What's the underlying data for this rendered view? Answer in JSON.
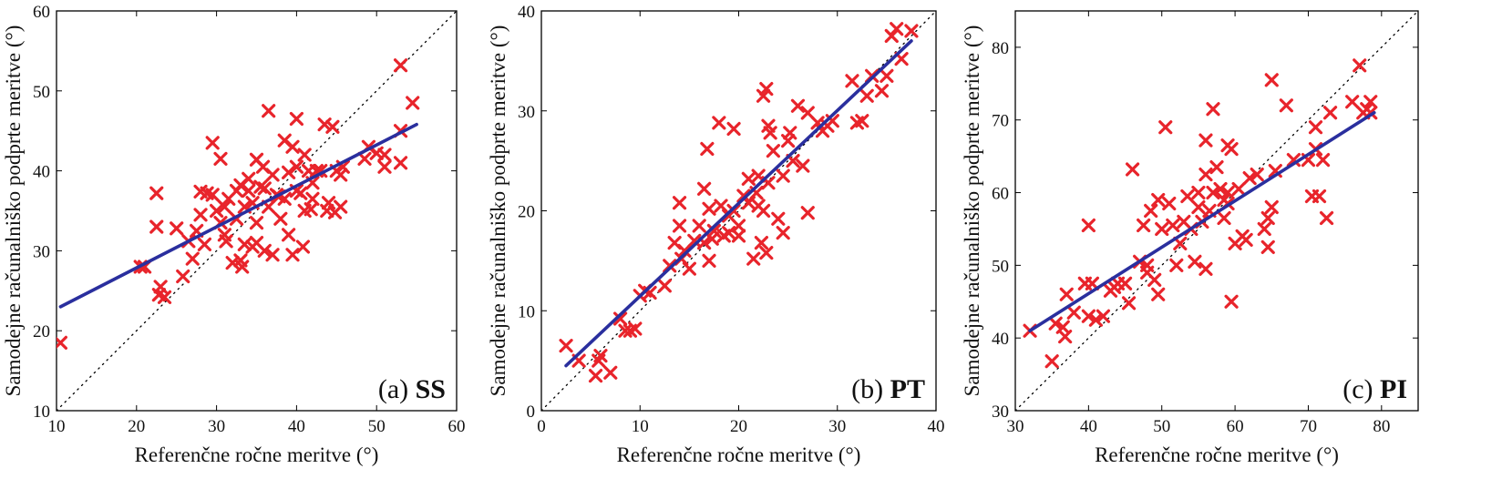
{
  "chart_data": [
    {
      "type": "scatter",
      "panel_letter": "(a)",
      "panel_code": "SS",
      "xlabel": "Referenčne ročne meritve (°)",
      "ylabel": "Samodejne računalniško podprte meritve (°)",
      "xlim": [
        10,
        60
      ],
      "ylim": [
        10,
        60
      ],
      "xticks": [
        10,
        20,
        30,
        40,
        50,
        60
      ],
      "yticks": [
        10,
        20,
        30,
        40,
        50,
        60
      ],
      "grid": false,
      "marker_color": "#e8242b",
      "fit_color": "#2a2f9e",
      "identity_line": [
        [
          10,
          10
        ],
        [
          60,
          60
        ]
      ],
      "fit_line": [
        [
          10.5,
          23
        ],
        [
          55,
          45.8
        ]
      ],
      "points": [
        [
          10.5,
          18.5
        ],
        [
          20.5,
          28
        ],
        [
          21,
          28
        ],
        [
          22.5,
          33
        ],
        [
          22.5,
          37.2
        ],
        [
          22.8,
          24.5
        ],
        [
          23,
          25.5
        ],
        [
          23.5,
          24.2
        ],
        [
          25,
          32.8
        ],
        [
          25.8,
          26.8
        ],
        [
          26.5,
          31.2
        ],
        [
          27,
          29
        ],
        [
          27.5,
          32.5
        ],
        [
          28,
          37.4
        ],
        [
          28,
          34.5
        ],
        [
          28.5,
          30.8
        ],
        [
          28.8,
          37.2
        ],
        [
          29.5,
          43.5
        ],
        [
          29.5,
          37
        ],
        [
          30,
          35
        ],
        [
          30.5,
          41.5
        ],
        [
          30.5,
          33.5
        ],
        [
          31,
          32
        ],
        [
          31,
          35.5
        ],
        [
          31.2,
          31.2
        ],
        [
          31.5,
          36.5
        ],
        [
          32,
          28.5
        ],
        [
          32.5,
          37.5
        ],
        [
          32.5,
          34
        ],
        [
          33,
          38.2
        ],
        [
          33,
          28.8
        ],
        [
          33.2,
          28
        ],
        [
          33.5,
          30.8
        ],
        [
          33.5,
          35.5
        ],
        [
          34,
          39
        ],
        [
          34,
          37.5
        ],
        [
          34.5,
          36
        ],
        [
          34.5,
          30.5
        ],
        [
          35,
          41.4
        ],
        [
          35,
          33.5
        ],
        [
          35,
          31
        ],
        [
          35.5,
          38
        ],
        [
          35.8,
          40.5
        ],
        [
          36,
          37.8
        ],
        [
          36,
          30
        ],
        [
          36.5,
          47.5
        ],
        [
          36.5,
          35.5
        ],
        [
          37,
          39.5
        ],
        [
          37,
          29.5
        ],
        [
          37.5,
          37
        ],
        [
          37.8,
          36.8
        ],
        [
          38,
          34
        ],
        [
          38.5,
          43.8
        ],
        [
          38.5,
          36.5
        ],
        [
          39,
          32
        ],
        [
          39,
          39.8
        ],
        [
          39.5,
          43
        ],
        [
          39.5,
          29.5
        ],
        [
          40,
          46.5
        ],
        [
          40,
          37.5
        ],
        [
          40,
          40.5
        ],
        [
          40.5,
          37.2
        ],
        [
          40.8,
          30.5
        ],
        [
          41,
          35
        ],
        [
          41,
          42
        ],
        [
          41.5,
          40
        ],
        [
          41.8,
          35.2
        ],
        [
          42,
          38.5
        ],
        [
          42,
          36.5
        ],
        [
          42.5,
          40
        ],
        [
          43,
          40
        ],
        [
          43.5,
          45.8
        ],
        [
          43.8,
          35
        ],
        [
          44,
          36
        ],
        [
          44.5,
          45.5
        ],
        [
          44.8,
          34.8
        ],
        [
          45,
          40
        ],
        [
          45.5,
          39.5
        ],
        [
          45.5,
          35.5
        ],
        [
          45.8,
          40.5
        ],
        [
          48.5,
          41.5
        ],
        [
          49,
          43
        ],
        [
          50,
          42.2
        ],
        [
          51,
          42
        ],
        [
          51,
          40.5
        ],
        [
          53,
          45
        ],
        [
          53,
          41
        ],
        [
          53,
          53.2
        ],
        [
          54.5,
          48.5
        ]
      ]
    },
    {
      "type": "scatter",
      "panel_letter": "(b)",
      "panel_code": "PT",
      "xlabel": "Referenčne ročne meritve (°)",
      "ylabel": "Samodejne računalniško podprte meritve (°)",
      "xlim": [
        0,
        40
      ],
      "ylim": [
        0,
        40
      ],
      "xticks": [
        0,
        10,
        20,
        30,
        40
      ],
      "yticks": [
        0,
        10,
        20,
        30,
        40
      ],
      "grid": false,
      "marker_color": "#e8242b",
      "fit_color": "#2a2f9e",
      "identity_line": [
        [
          0,
          0
        ],
        [
          40,
          40
        ]
      ],
      "fit_line": [
        [
          2.5,
          4.5
        ],
        [
          37.5,
          37
        ]
      ],
      "points": [
        [
          2.5,
          6.5
        ],
        [
          3.8,
          5
        ],
        [
          5.5,
          3.5
        ],
        [
          5.8,
          5
        ],
        [
          6,
          5.5
        ],
        [
          7,
          3.8
        ],
        [
          8,
          9.2
        ],
        [
          8.5,
          8
        ],
        [
          9,
          8
        ],
        [
          9.5,
          8.2
        ],
        [
          10,
          11.5
        ],
        [
          10.5,
          12
        ],
        [
          11,
          11.8
        ],
        [
          12.5,
          12.5
        ],
        [
          13,
          14.5
        ],
        [
          13.5,
          16.8
        ],
        [
          14,
          20.8
        ],
        [
          14,
          18.5
        ],
        [
          14.2,
          15.2
        ],
        [
          14.5,
          16
        ],
        [
          15,
          14.2
        ],
        [
          15.5,
          17
        ],
        [
          16,
          18.5
        ],
        [
          16.5,
          22.2
        ],
        [
          16.5,
          16.8
        ],
        [
          16.8,
          26.2
        ],
        [
          17,
          15
        ],
        [
          17,
          20.2
        ],
        [
          17.3,
          17.2
        ],
        [
          17.5,
          18
        ],
        [
          18,
          28.8
        ],
        [
          18.2,
          20.5
        ],
        [
          18.5,
          17.5
        ],
        [
          19,
          19.5
        ],
        [
          19,
          17.8
        ],
        [
          19.5,
          28.2
        ],
        [
          19.5,
          20
        ],
        [
          20,
          18.5
        ],
        [
          20,
          17.5
        ],
        [
          20.5,
          21.5
        ],
        [
          21,
          23.2
        ],
        [
          21,
          20.8
        ],
        [
          21.5,
          15.2
        ],
        [
          21.8,
          21.8
        ],
        [
          22,
          23.5
        ],
        [
          22,
          20.5
        ],
        [
          22.3,
          16.8
        ],
        [
          22.5,
          31.5
        ],
        [
          22.5,
          20
        ],
        [
          22.8,
          32.2
        ],
        [
          22.8,
          15.8
        ],
        [
          23,
          28.5
        ],
        [
          23,
          22.8
        ],
        [
          23.2,
          27.8
        ],
        [
          23.5,
          26
        ],
        [
          24,
          19.2
        ],
        [
          24.5,
          17.8
        ],
        [
          24.5,
          23.5
        ],
        [
          25,
          27
        ],
        [
          25.2,
          27.8
        ],
        [
          25.5,
          25
        ],
        [
          26,
          30.5
        ],
        [
          26.5,
          24.5
        ],
        [
          27,
          29.8
        ],
        [
          27,
          19.8
        ],
        [
          28,
          28.8
        ],
        [
          28.5,
          28
        ],
        [
          29,
          28.5
        ],
        [
          29.5,
          29
        ],
        [
          31.5,
          33
        ],
        [
          32,
          28.8
        ],
        [
          32.5,
          29
        ],
        [
          33,
          31.5
        ],
        [
          33.5,
          33.5
        ],
        [
          34.5,
          32
        ],
        [
          35,
          33.5
        ],
        [
          35.5,
          37.5
        ],
        [
          36,
          38.2
        ],
        [
          36.5,
          35.2
        ],
        [
          37.5,
          38
        ]
      ]
    },
    {
      "type": "scatter",
      "panel_letter": "(c)",
      "panel_code": "PI",
      "xlabel": "Referenčne ročne meritve (°)",
      "ylabel": "Samodejne računalniško podprte meritve (°)",
      "xlim": [
        30,
        85
      ],
      "ylim": [
        30,
        85
      ],
      "xticks": [
        30,
        40,
        50,
        60,
        70,
        80
      ],
      "yticks": [
        30,
        40,
        50,
        60,
        70,
        80
      ],
      "grid": false,
      "marker_color": "#e8242b",
      "fit_color": "#2a2f9e",
      "identity_line": [
        [
          30,
          30
        ],
        [
          85,
          85
        ]
      ],
      "fit_line": [
        [
          32,
          41
        ],
        [
          79,
          71
        ]
      ],
      "points": [
        [
          32,
          41
        ],
        [
          35,
          36.8
        ],
        [
          35.5,
          42
        ],
        [
          36.5,
          41.5
        ],
        [
          36.8,
          40.2
        ],
        [
          37,
          46
        ],
        [
          38,
          43.5
        ],
        [
          39.5,
          47.5
        ],
        [
          40,
          55.5
        ],
        [
          40,
          43
        ],
        [
          40.5,
          47.5
        ],
        [
          41,
          42.5
        ],
        [
          42,
          43
        ],
        [
          43,
          46.5
        ],
        [
          43.5,
          47
        ],
        [
          44,
          47.5
        ],
        [
          45,
          47.5
        ],
        [
          45.5,
          44.8
        ],
        [
          46,
          63.2
        ],
        [
          47,
          50.5
        ],
        [
          47.5,
          55.5
        ],
        [
          48,
          49
        ],
        [
          48,
          50
        ],
        [
          48.5,
          57.5
        ],
        [
          49,
          48
        ],
        [
          49.5,
          46
        ],
        [
          49.5,
          59
        ],
        [
          50,
          55
        ],
        [
          50.5,
          69
        ],
        [
          51,
          58.5
        ],
        [
          51.5,
          55.5
        ],
        [
          52,
          50
        ],
        [
          52.5,
          53
        ],
        [
          53,
          56
        ],
        [
          53.5,
          59.5
        ],
        [
          54,
          55
        ],
        [
          54.5,
          50.5
        ],
        [
          55,
          58
        ],
        [
          55,
          60
        ],
        [
          55.5,
          56
        ],
        [
          56,
          49.5
        ],
        [
          56,
          67.2
        ],
        [
          56,
          62.5
        ],
        [
          56.5,
          57.5
        ],
        [
          57,
          60
        ],
        [
          57,
          71.5
        ],
        [
          57.5,
          63.5
        ],
        [
          58,
          60.5
        ],
        [
          58.5,
          56.5
        ],
        [
          58.5,
          59
        ],
        [
          59,
          66.5
        ],
        [
          59,
          60
        ],
        [
          59,
          58.5
        ],
        [
          59.5,
          66
        ],
        [
          59.5,
          45
        ],
        [
          60,
          53
        ],
        [
          60.5,
          60.5
        ],
        [
          61,
          54
        ],
        [
          61.5,
          53.5
        ],
        [
          62,
          62
        ],
        [
          63,
          62.5
        ],
        [
          64,
          55
        ],
        [
          64.5,
          56.5
        ],
        [
          64.5,
          52.5
        ],
        [
          65,
          75.5
        ],
        [
          65,
          58
        ],
        [
          65.5,
          63
        ],
        [
          67,
          72
        ],
        [
          68,
          64.5
        ],
        [
          70,
          64.5
        ],
        [
          70.5,
          59.5
        ],
        [
          71,
          69
        ],
        [
          71,
          66
        ],
        [
          71.5,
          59.5
        ],
        [
          72,
          64.5
        ],
        [
          72.5,
          56.5
        ],
        [
          73,
          71
        ],
        [
          76,
          72.5
        ],
        [
          77,
          77.5
        ],
        [
          77.5,
          71
        ],
        [
          78,
          71.5
        ],
        [
          78.5,
          72.5
        ],
        [
          78.5,
          71
        ]
      ]
    }
  ]
}
